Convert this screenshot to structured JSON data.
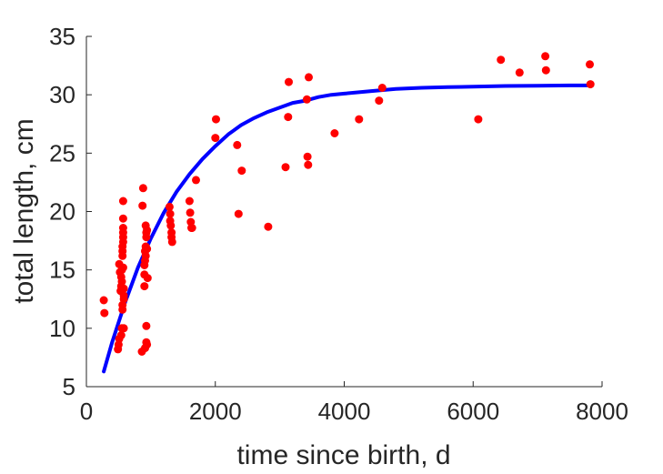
{
  "chart_data": {
    "type": "scatter",
    "title": "",
    "xlabel": "time since birth, d",
    "ylabel": "total length, cm",
    "xlim": [
      0,
      8000
    ],
    "ylim": [
      5,
      35
    ],
    "xticks": [
      0,
      2000,
      4000,
      6000,
      8000
    ],
    "xtick_labels": [
      "0",
      "2000",
      "4000",
      "6000",
      "8000"
    ],
    "yticks": [
      5,
      10,
      15,
      20,
      25,
      30,
      35
    ],
    "ytick_labels": [
      "5",
      "10",
      "15",
      "20",
      "25",
      "30",
      "35"
    ],
    "grid": false,
    "legend": "none",
    "colors": {
      "points": "#ff0000",
      "curve": "#0000ff",
      "axis": "#262626"
    },
    "series": [
      {
        "kind": "points",
        "x": [
          270,
          280,
          490,
          500,
          510,
          510,
          520,
          530,
          540,
          540,
          540,
          550,
          550,
          550,
          560,
          560,
          560,
          560,
          560,
          570,
          570,
          570,
          570,
          570,
          570,
          570,
          580,
          580,
          580,
          580,
          860,
          870,
          880,
          900,
          900,
          900,
          910,
          910,
          910,
          920,
          920,
          920,
          930,
          930,
          930,
          930,
          940,
          940,
          940,
          950,
          1290,
          1300,
          1300,
          1310,
          1320,
          1320,
          1330,
          1600,
          1610,
          1620,
          1630,
          1640,
          1700,
          2000,
          2010,
          2340,
          2360,
          2410,
          2820,
          3090,
          3130,
          3140,
          3420,
          3430,
          3440,
          3450,
          3850,
          4230,
          4540,
          4590,
          6080,
          6430,
          6720,
          7120,
          7130,
          7810,
          7820
        ],
        "y": [
          12.4,
          11.3,
          8.2,
          8.6,
          9.1,
          15.5,
          14.8,
          13.2,
          13.6,
          14.4,
          9.4,
          14.0,
          15.0,
          10.0,
          11.6,
          12.0,
          16.2,
          16.6,
          17.0,
          17.4,
          17.8,
          18.2,
          18.6,
          19.4,
          20.9,
          15.2,
          12.5,
          12.8,
          13.4,
          10.0,
          8.0,
          20.5,
          22.0,
          14.6,
          15.4,
          13.6,
          15.8,
          16.6,
          8.3,
          16.2,
          17.0,
          18.8,
          18.2,
          17.8,
          10.2,
          8.8,
          18.4,
          16.8,
          8.6,
          14.3,
          20.4,
          19.8,
          19.2,
          18.8,
          18.2,
          17.8,
          17.4,
          20.9,
          19.9,
          19.1,
          18.6,
          18.6,
          22.7,
          26.3,
          27.9,
          25.7,
          19.8,
          23.5,
          18.7,
          23.8,
          28.1,
          31.1,
          29.6,
          24.7,
          24.0,
          31.5,
          26.7,
          27.9,
          29.5,
          30.6,
          27.9,
          33.0,
          31.9,
          33.3,
          32.1,
          32.6,
          30.9
        ]
      },
      {
        "kind": "curve",
        "x": [
          270,
          400,
          600,
          800,
          1000,
          1200,
          1400,
          1600,
          1800,
          2000,
          2200,
          2400,
          2600,
          2800,
          3000,
          3200,
          3400,
          3600,
          3800,
          4000,
          4400,
          4800,
          5200,
          5600,
          6000,
          6500,
          7000,
          7500,
          7820
        ],
        "y": [
          6.3,
          8.8,
          12.2,
          15.2,
          17.7,
          19.9,
          21.7,
          23.2,
          24.5,
          25.6,
          26.6,
          27.4,
          28.0,
          28.5,
          28.9,
          29.3,
          29.5,
          29.8,
          30.0,
          30.1,
          30.3,
          30.5,
          30.6,
          30.65,
          30.7,
          30.75,
          30.78,
          30.8,
          30.8
        ]
      }
    ]
  }
}
